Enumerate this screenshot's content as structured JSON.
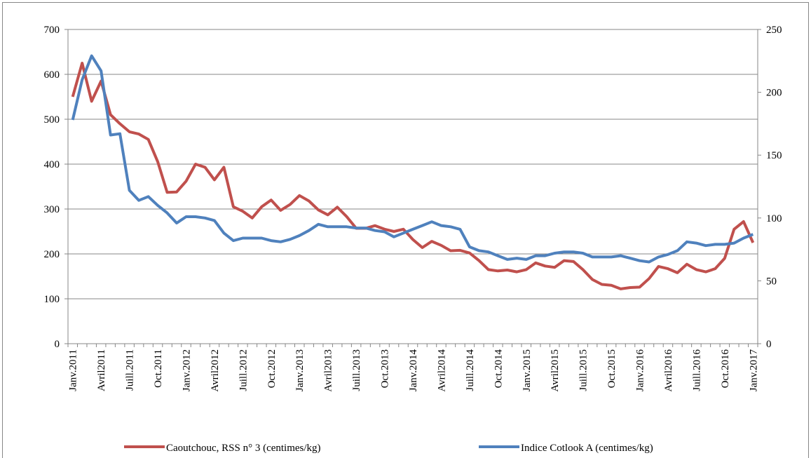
{
  "chart_data": {
    "type": "line",
    "categories": [
      "Janv.2011",
      null,
      null,
      "Avril2011",
      null,
      null,
      "Juill.2011",
      null,
      null,
      "Oct.2011",
      null,
      null,
      "Janv.2012",
      null,
      null,
      "Avril2012",
      null,
      null,
      "Juill.2012",
      null,
      null,
      "Oct.2012",
      null,
      null,
      "Janv.2013",
      null,
      null,
      "Avril2013",
      null,
      null,
      "Juill.2013",
      null,
      null,
      "Oct.2013",
      null,
      null,
      "Janv.2014",
      null,
      null,
      "Avril2014",
      null,
      null,
      "Juill.2014",
      null,
      null,
      "Oct.2014",
      null,
      null,
      "Janv.2015",
      null,
      null,
      "Avril2015",
      null,
      null,
      "Juill.2015",
      null,
      null,
      "Oct.2015",
      null,
      null,
      "Janv.2016",
      null,
      null,
      "Avril2016",
      null,
      null,
      "Juill.2016",
      null,
      null,
      "Oct.2016",
      null,
      null,
      "Janv.2017"
    ],
    "series": [
      {
        "name": "Caoutchouc, RSS n° 3 (centimes/kg)",
        "color": "#c0504d",
        "axis": "y",
        "values": [
          550,
          625,
          540,
          585,
          510,
          490,
          472,
          467,
          455,
          405,
          337,
          338,
          362,
          400,
          393,
          365,
          393,
          305,
          295,
          280,
          305,
          320,
          297,
          310,
          330,
          318,
          298,
          287,
          304,
          283,
          257,
          257,
          263,
          255,
          250,
          255,
          232,
          214,
          228,
          219,
          207,
          208,
          202,
          185,
          165,
          162,
          164,
          160,
          165,
          180,
          173,
          170,
          185,
          183,
          165,
          143,
          132,
          130,
          122,
          125,
          126,
          145,
          172,
          167,
          158,
          177,
          165,
          160,
          167,
          190,
          255,
          272,
          225
        ]
      },
      {
        "name": "Indice Cotlook A (centimes/kg)",
        "color": "#4f81bd",
        "axis": "y2",
        "values": [
          178,
          210,
          229,
          217,
          166,
          167,
          122,
          114,
          117,
          110,
          104,
          96,
          101,
          101,
          100,
          98,
          88,
          82,
          84,
          84,
          84,
          82,
          81,
          83,
          86,
          90,
          95,
          93,
          93,
          93,
          92,
          92,
          90,
          89,
          85,
          88,
          91,
          94,
          97,
          94,
          93,
          91,
          77,
          74,
          73,
          70,
          67,
          68,
          67,
          70,
          70,
          72,
          73,
          73,
          72,
          69,
          69,
          69,
          70,
          68,
          66,
          65,
          69,
          71,
          74,
          81,
          80,
          78,
          79,
          79,
          80,
          84,
          87
        ]
      }
    ],
    "ylim": [
      0,
      700
    ],
    "yticks": [
      0,
      100,
      200,
      300,
      400,
      500,
      600,
      700
    ],
    "y2lim": [
      0,
      250
    ],
    "y2ticks": [
      0,
      50,
      100,
      150,
      200,
      250
    ],
    "grid": true,
    "legend": "bottom"
  }
}
